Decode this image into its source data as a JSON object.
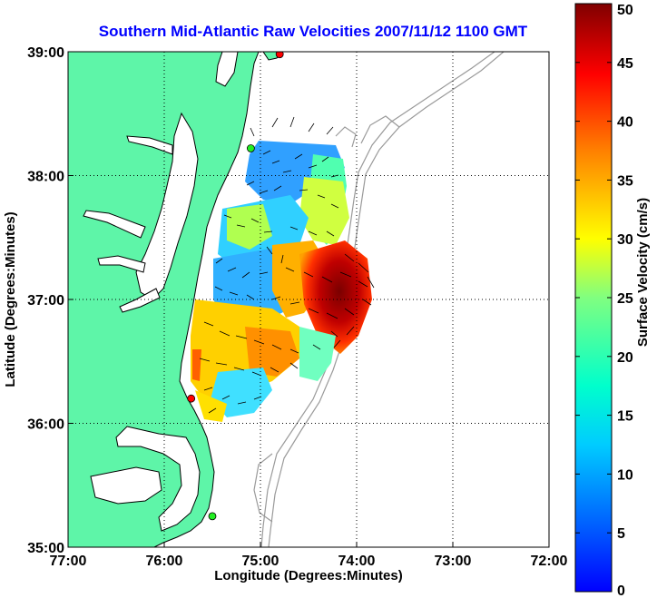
{
  "title": "Southern Mid-Atlantic Raw Velocities 2007/11/12 1100 GMT",
  "map": {
    "xlabel": "Longitude (Degrees:Minutes)",
    "ylabel": "Latitude (Degrees:Minutes)",
    "x_ticks": [
      "77:00",
      "76:00",
      "75:00",
      "74:00",
      "73:00",
      "72:00"
    ],
    "y_ticks": [
      "39:00",
      "38:00",
      "37:00",
      "36:00",
      "35:00"
    ],
    "lon_range": [
      -77,
      -72
    ],
    "lat_range": [
      35,
      39
    ],
    "grid": true,
    "land_color": "#5ef5a8",
    "coast_color": "#000000",
    "bathymetry_color": "#9a9a9a",
    "station_markers": [
      {
        "lon": -74.8,
        "lat": 38.98,
        "color": "#ff0000"
      },
      {
        "lon": -75.1,
        "lat": 38.22,
        "color": "#22ee22"
      },
      {
        "lon": -75.72,
        "lat": 36.2,
        "color": "#ff0000"
      },
      {
        "lon": -75.5,
        "lat": 35.25,
        "color": "#22ee22"
      }
    ]
  },
  "colorbar": {
    "label": "Surface Velocity (cm/s)",
    "ticks": [
      "0",
      "5",
      "10",
      "15",
      "20",
      "25",
      "30",
      "35",
      "40",
      "45",
      "50"
    ],
    "min": 0,
    "max": 50,
    "colormap": "jet"
  }
}
